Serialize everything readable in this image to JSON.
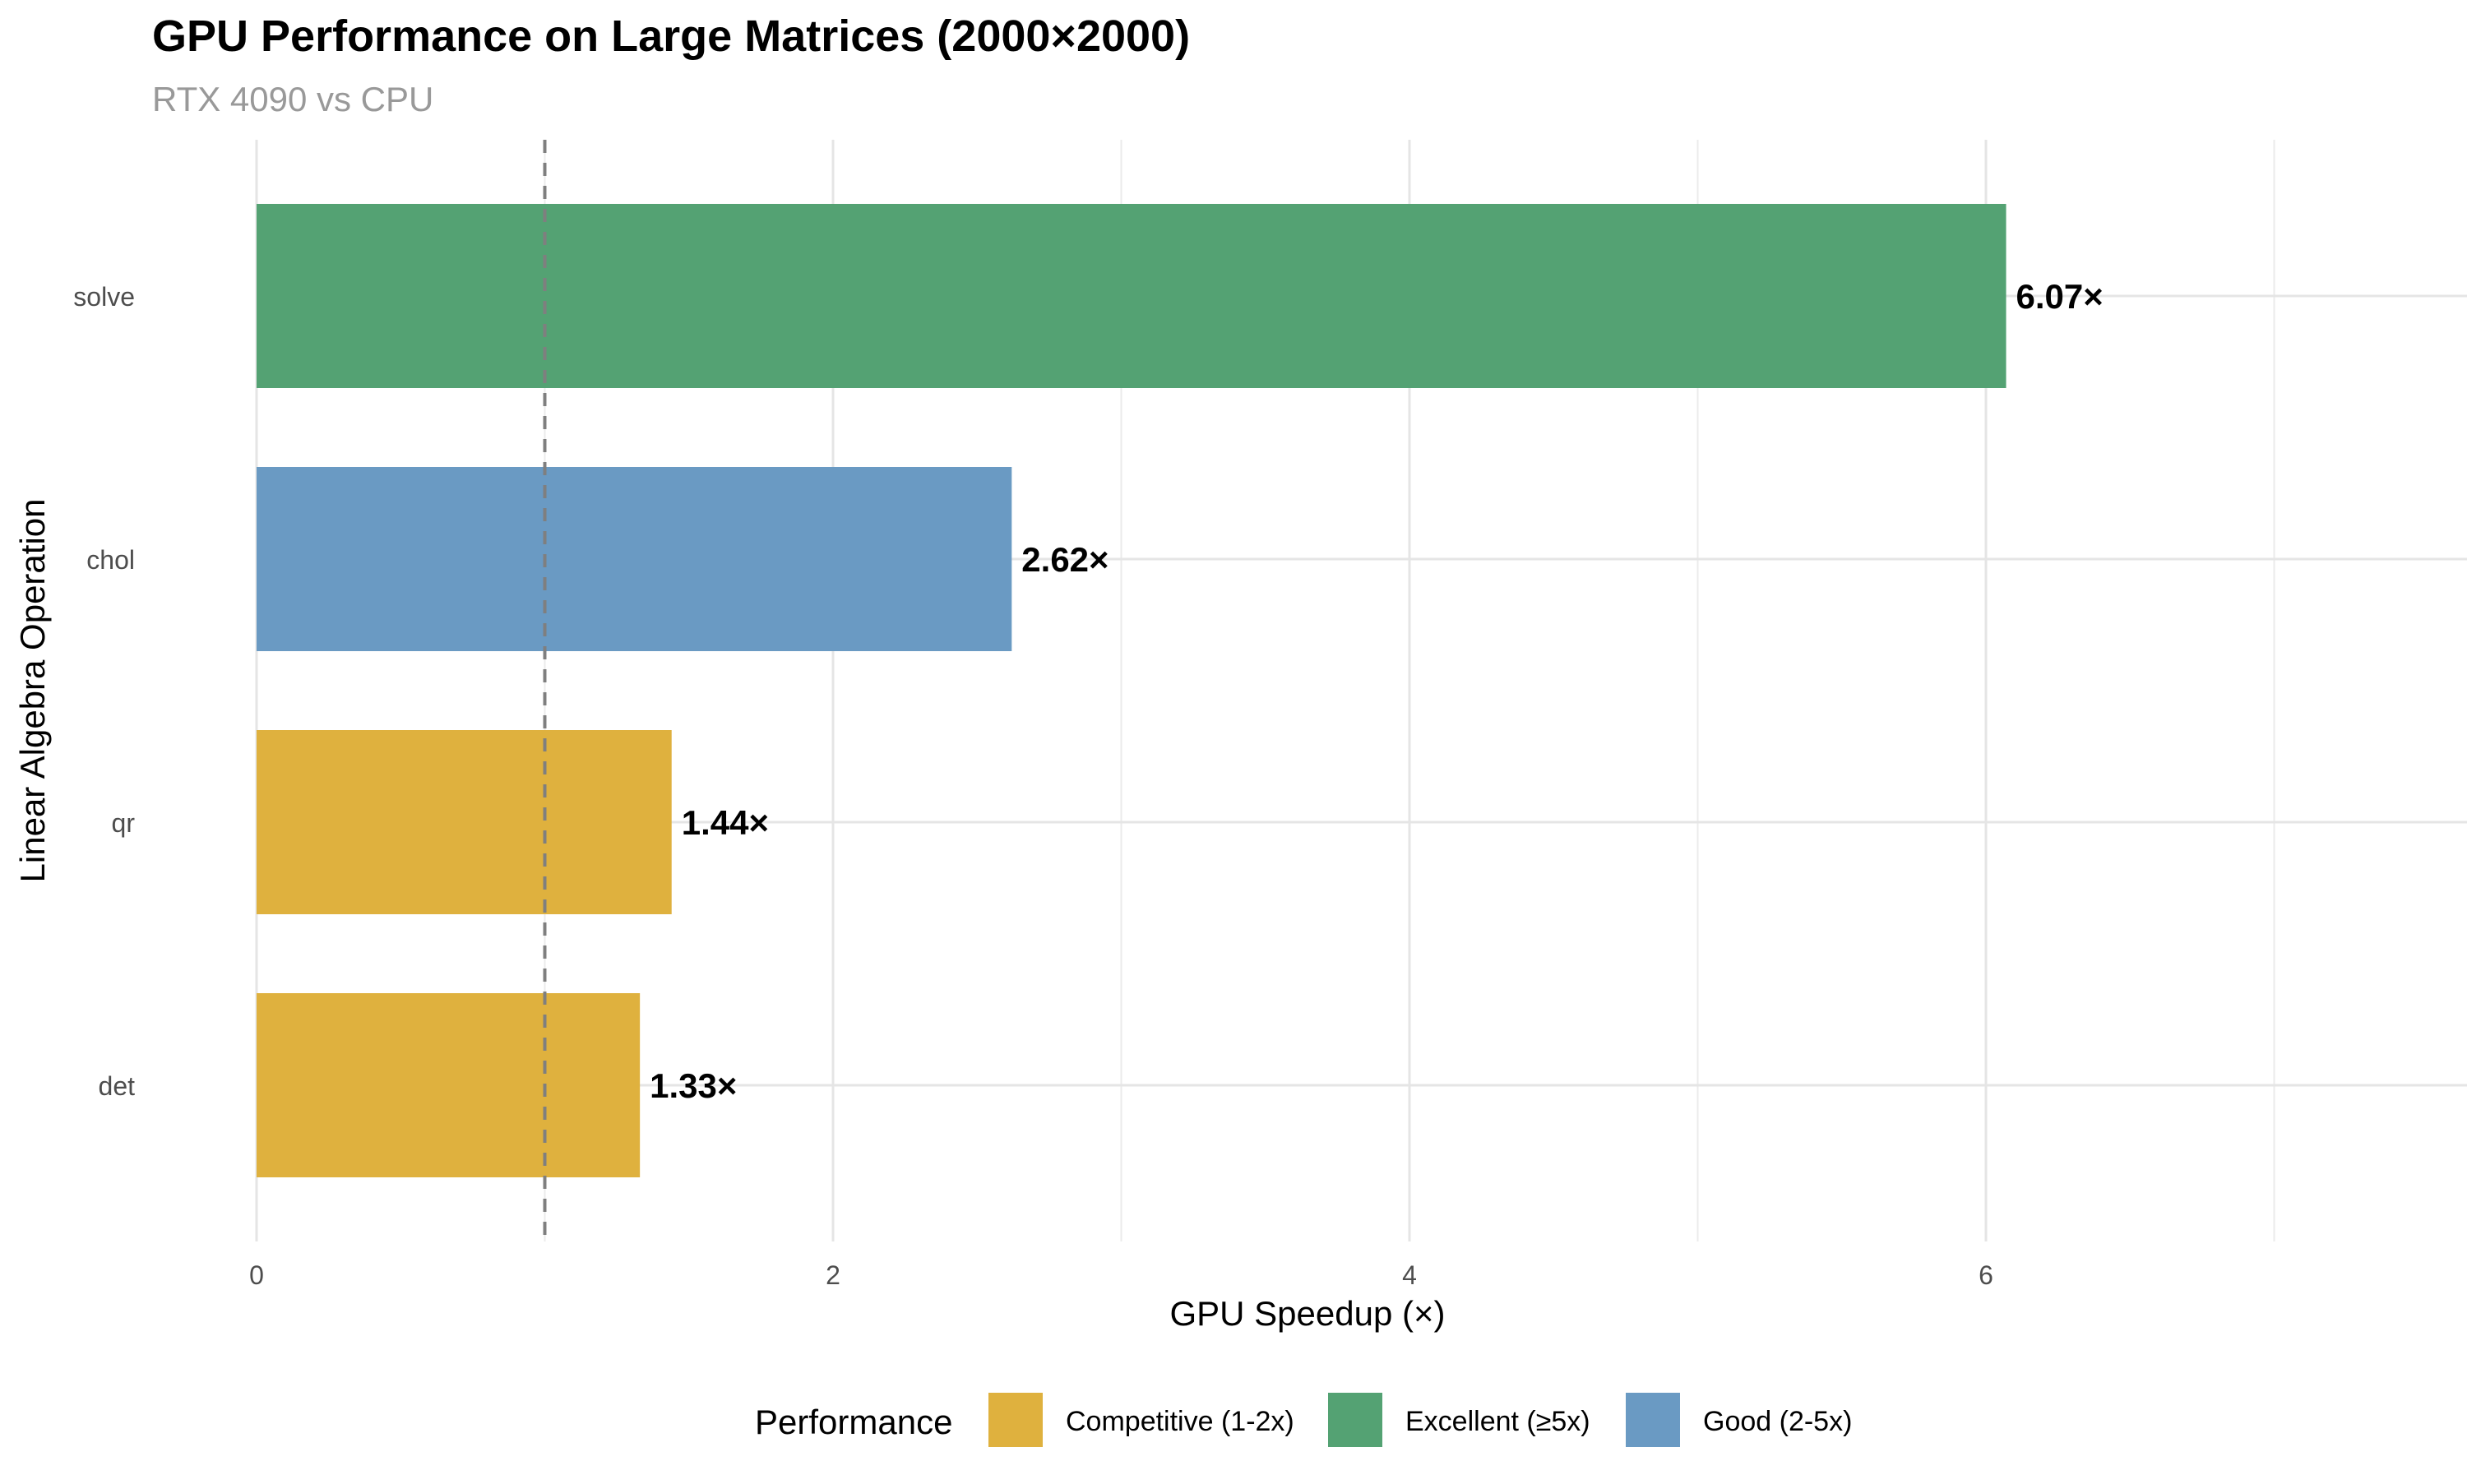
{
  "chart_data": {
    "type": "bar",
    "orientation": "horizontal",
    "title": "GPU Performance on Large Matrices (2000×2000)",
    "subtitle": "RTX 4090 vs CPU",
    "xlabel": "GPU Speedup (×)",
    "ylabel": "Linear Algebra Operation",
    "xlim": [
      0,
      7.5
    ],
    "x_ticks": [
      0,
      2,
      4,
      6
    ],
    "reference_line": {
      "x": 1,
      "style": "dashed"
    },
    "grid": true,
    "legend_position": "bottom",
    "legend_title": "Performance",
    "categories": [
      "solve",
      "chol",
      "qr",
      "det"
    ],
    "values": [
      6.07,
      2.62,
      1.44,
      1.33
    ],
    "value_labels": [
      "6.07×",
      "2.62×",
      "1.44×",
      "1.33×"
    ],
    "groups": [
      "Excellent (≥5x)",
      "Good (2-5x)",
      "Competitive (1-2x)",
      "Competitive (1-2x)"
    ],
    "legend": [
      {
        "label": "Competitive (1-2x)",
        "color": "#DFB13E"
      },
      {
        "label": "Excellent (≥5x)",
        "color": "#54A273"
      },
      {
        "label": "Good (2-5x)",
        "color": "#6A9AC3"
      }
    ]
  }
}
